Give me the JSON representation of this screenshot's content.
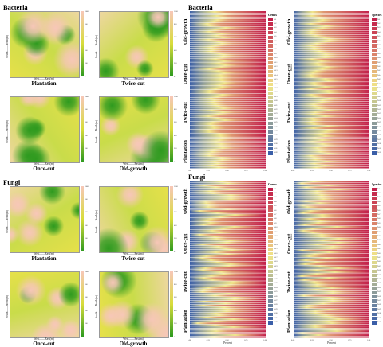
{
  "left": {
    "sections": [
      {
        "title": "Bacteria",
        "panels": [
          {
            "label": "Plantation",
            "xlabel": "West——East(m)",
            "ylabel": "South——North(m)",
            "ticks": [
              "1000",
              "800",
              "600",
              "400",
              "200",
              "0"
            ]
          },
          {
            "label": "Twice-cut",
            "xlabel": "West——East(m)",
            "ylabel": "South——North(m)",
            "ticks": [
              "1000",
              "800",
              "600",
              "400",
              "200",
              "0"
            ]
          },
          {
            "label": "Once-cut",
            "xlabel": "West——East(m)",
            "ylabel": "South——North(m)",
            "ticks": [
              "1000",
              "800",
              "600",
              "400",
              "200",
              "0"
            ]
          },
          {
            "label": "Old-growth",
            "xlabel": "West——East(m)",
            "ylabel": "South——North(m)",
            "ticks": [
              "1000",
              "800",
              "600",
              "400",
              "200",
              "0"
            ]
          }
        ]
      },
      {
        "title": "Fungi",
        "panels": [
          {
            "label": "Plantation",
            "xlabel": "West——East(m)",
            "ylabel": "South——North(m)",
            "ticks": [
              "1000",
              "800",
              "600",
              "400",
              "200",
              "0"
            ]
          },
          {
            "label": "Twice-cut",
            "xlabel": "West——East(m)",
            "ylabel": "South——North(m)",
            "ticks": [
              "1000",
              "800",
              "600",
              "400",
              "200",
              "0"
            ]
          },
          {
            "label": "Once-cut",
            "xlabel": "West——East(m)",
            "ylabel": "South——North(m)",
            "ticks": [
              "1000",
              "800",
              "600",
              "400",
              "200",
              "0"
            ]
          },
          {
            "label": "Old-growth",
            "xlabel": "West——East(m)",
            "ylabel": "South——North(m)",
            "ticks": [
              "1000",
              "800",
              "600",
              "400",
              "200",
              "0"
            ]
          }
        ]
      }
    ]
  },
  "right": {
    "sections": [
      {
        "title": "Bacteria",
        "habitats": [
          "Old-growth",
          "Once-cut",
          "Twice-cut",
          "Plantation"
        ],
        "small_label": "Habitat",
        "charts": [
          {
            "legend_title": "Genus",
            "xlabel": "",
            "xticks": [
              "0.00",
              "0.25",
              "0.50",
              "0.75",
              "1.00"
            ]
          },
          {
            "legend_title": "Species",
            "xlabel": "",
            "xticks": [
              "0.00",
              "0.25",
              "0.50",
              "0.75",
              "1.00"
            ]
          }
        ]
      },
      {
        "title": "Fungi",
        "habitats": [
          "Old-growth",
          "Once-cut",
          "Twice-cut",
          "Plantation"
        ],
        "small_label": "Habitat",
        "charts": [
          {
            "legend_title": "Genus",
            "xlabel": "Percent",
            "xticks": [
              "0.00",
              "0.25",
              "0.50",
              "0.75",
              "1.00"
            ]
          },
          {
            "legend_title": "Species",
            "xlabel": "Percent",
            "xticks": [
              "0.00",
              "0.25",
              "0.50",
              "0.75",
              "1.00"
            ]
          }
        ]
      }
    ],
    "legend_items": [
      "Ta1",
      "Ta2",
      "Ta3",
      "Ta4",
      "Ta5",
      "Ta6",
      "Ta7",
      "Ta8",
      "Ta9",
      "Ta10",
      "Ta11",
      "Ta12",
      "Ta13",
      "Ta14",
      "Ta15",
      "Ta16",
      "Ta17",
      "Ta18",
      "Ta19",
      "Ta20",
      "Ta21",
      "Ta22",
      "Ta23",
      "Ta24",
      "Ta25",
      "Ta26",
      "Ta27",
      "Ta28",
      "Ta29",
      "Ta30",
      "Ta31",
      "Ta32"
    ]
  },
  "colors": {
    "map_low": "#2e9a1f",
    "map_mid": "#d8dc3a",
    "map_high": "#f7c7b8",
    "stack_start": "#3b5fa8",
    "stack_mid": "#f0e58a",
    "stack_end": "#c21f4a"
  }
}
